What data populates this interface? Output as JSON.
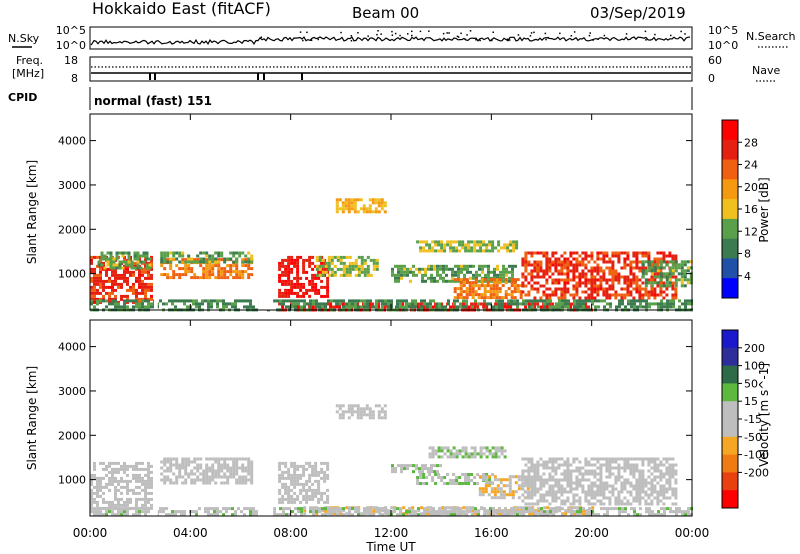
{
  "header": {
    "station": "Hokkaido East (fitACF)",
    "beam": "Beam 00",
    "date": "03/Sep/2019"
  },
  "noise_panel": {
    "left_label": "N.Sky",
    "right_label": "N.Search",
    "left_ticks": [
      "10^5",
      "10^0"
    ],
    "right_ticks": [
      "10^5",
      "10^0"
    ]
  },
  "freq_panel": {
    "left_label_top": "Freq.",
    "left_label_unit": "[MHz]",
    "left_ticks": [
      "18",
      "8"
    ],
    "right_label": "Nave",
    "right_ticks": [
      "60",
      "0"
    ]
  },
  "cpid_panel": {
    "label": "CPID",
    "value": "normal (fast) 151"
  },
  "colors": {
    "power_scale": [
      "#0000ff",
      "#2050a8",
      "#3c7a50",
      "#5aa04a",
      "#f0c020",
      "#f59a10",
      "#f06010",
      "#e52010",
      "#ff0000"
    ],
    "velocity_scale": [
      "#1a1acc",
      "#2e2e9a",
      "#2e6b48",
      "#5cb83e",
      "#bebebe",
      "#bebebe",
      "#f5a623",
      "#f07b12",
      "#e8400f",
      "#ff0000"
    ],
    "ground_scatter": "#bebebe"
  },
  "chart_data": [
    {
      "type": "heatmap",
      "title": "",
      "xlabel": "",
      "ylabel": "Slant Range [km]",
      "x_ticks": [
        "00:00",
        "04:00",
        "08:00",
        "12:00",
        "16:00",
        "20:00",
        "00:00"
      ],
      "y_ticks": [
        "1000",
        "2000",
        "3000",
        "4000"
      ],
      "xlim": [
        0,
        24
      ],
      "ylim": [
        180,
        4600
      ],
      "colorbar": {
        "label": "Power [dB]",
        "ticks": [
          "4",
          "8",
          "12",
          "16",
          "20",
          "24",
          "28"
        ],
        "range": [
          0,
          32
        ]
      },
      "regions": [
        {
          "t0": 0.0,
          "t1": 2.5,
          "r0": 350,
          "r1": 1400,
          "value": 26
        },
        {
          "t0": 0.3,
          "t1": 2.4,
          "r0": 1100,
          "r1": 1500,
          "value": 12
        },
        {
          "t0": 2.8,
          "t1": 6.5,
          "r0": 900,
          "r1": 1350,
          "value": 22
        },
        {
          "t0": 2.8,
          "t1": 6.5,
          "r0": 1250,
          "r1": 1500,
          "value": 12
        },
        {
          "t0": 7.5,
          "t1": 9.5,
          "r0": 500,
          "r1": 1400,
          "value": 28
        },
        {
          "t0": 9.0,
          "t1": 11.5,
          "r0": 950,
          "r1": 1400,
          "value": 14
        },
        {
          "t0": 9.8,
          "t1": 11.8,
          "r0": 2400,
          "r1": 2700,
          "value": 18
        },
        {
          "t0": 12.0,
          "t1": 17.0,
          "r0": 800,
          "r1": 1200,
          "value": 12
        },
        {
          "t0": 13.0,
          "t1": 17.0,
          "r0": 1500,
          "r1": 1750,
          "value": 14
        },
        {
          "t0": 14.5,
          "t1": 17.2,
          "r0": 450,
          "r1": 900,
          "value": 22
        },
        {
          "t0": 17.2,
          "t1": 23.3,
          "r0": 450,
          "r1": 1500,
          "value": 26
        },
        {
          "t0": 22.0,
          "t1": 24.0,
          "r0": 700,
          "r1": 1300,
          "value": 12
        },
        {
          "t0": 7.5,
          "t1": 20.0,
          "r0": 200,
          "r1": 350,
          "value": 28
        },
        {
          "t0": 0.0,
          "t1": 24.0,
          "r0": 200,
          "r1": 420,
          "value": 10
        }
      ]
    },
    {
      "type": "heatmap",
      "title": "",
      "xlabel": "Time UT",
      "ylabel": "Slant Range [km]",
      "x_ticks": [
        "00:00",
        "04:00",
        "08:00",
        "12:00",
        "16:00",
        "20:00",
        "00:00"
      ],
      "y_ticks": [
        "1000",
        "2000",
        "3000",
        "4000"
      ],
      "xlim": [
        0,
        24
      ],
      "ylim": [
        180,
        4600
      ],
      "colorbar": {
        "label": "Velocity [m s^-1]",
        "ticks": [
          "200",
          "100",
          "50",
          "15",
          "-15",
          "-50",
          "-100",
          "-200"
        ],
        "range": [
          -250,
          250
        ]
      },
      "regions": [
        {
          "t0": 0.0,
          "t1": 2.5,
          "r0": 350,
          "r1": 1400,
          "value": 0
        },
        {
          "t0": 2.8,
          "t1": 6.5,
          "r0": 900,
          "r1": 1500,
          "value": 0
        },
        {
          "t0": 7.5,
          "t1": 9.5,
          "r0": 500,
          "r1": 1400,
          "value": 0
        },
        {
          "t0": 9.8,
          "t1": 11.8,
          "r0": 2400,
          "r1": 2700,
          "value": 0
        },
        {
          "t0": 12.0,
          "t1": 14.0,
          "r0": 1150,
          "r1": 1350,
          "value": 30
        },
        {
          "t0": 13.5,
          "t1": 16.5,
          "r0": 1500,
          "r1": 1750,
          "value": 30
        },
        {
          "t0": 13.0,
          "t1": 16.0,
          "r0": 900,
          "r1": 1150,
          "value": 35
        },
        {
          "t0": 15.5,
          "t1": 17.5,
          "r0": 600,
          "r1": 1100,
          "value": -40
        },
        {
          "t0": 17.2,
          "t1": 23.3,
          "r0": 450,
          "r1": 1500,
          "value": 0
        },
        {
          "t0": 8.5,
          "t1": 20.0,
          "r0": 220,
          "r1": 400,
          "value": -35
        },
        {
          "t0": 0.0,
          "t1": 24.0,
          "r0": 200,
          "r1": 380,
          "value": 20
        }
      ]
    }
  ]
}
